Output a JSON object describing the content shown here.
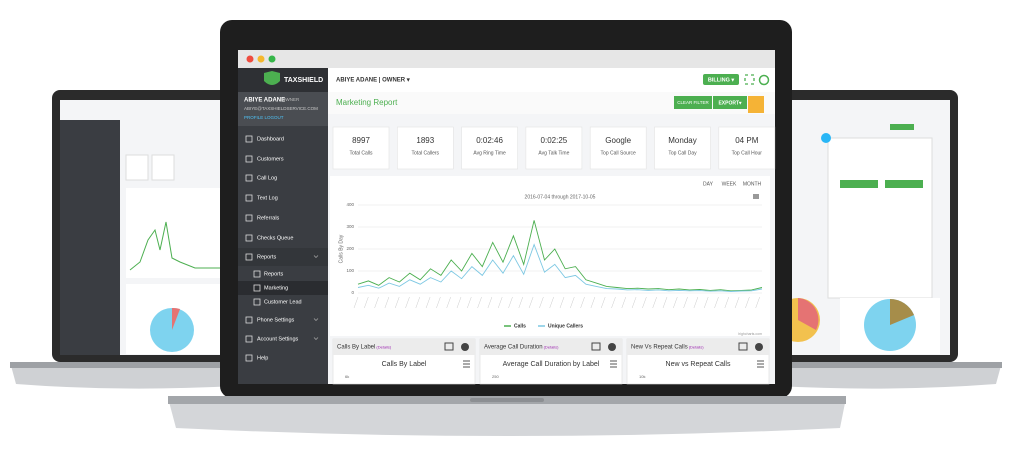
{
  "sidebar": {
    "brand": "TAXSHIELD",
    "user_name": "ABIYE ADANE",
    "user_role": "OWNER",
    "email": "ABIYE@TAXSHIELDSERVICE.COM",
    "profile_link": "PROFILE LOGOUT",
    "menu": [
      "Dashboard",
      "Customers",
      "Call Log",
      "Text Log",
      "Referrals",
      "Checks Queue",
      "Reports",
      "Reports",
      "Marketing",
      "Customer Lead",
      "Phone Settings",
      "Account Settings",
      "Help"
    ]
  },
  "header": {
    "user": "ABIYE ADANE | OWNER ▾",
    "billing": "BILLING ▾"
  },
  "page": {
    "title": "Marketing Report",
    "clear_filter": "CLEAR FILTER",
    "export": "EXPORT▾"
  },
  "stats": [
    {
      "value": "8997",
      "label": "Total Calls"
    },
    {
      "value": "1893",
      "label": "Total Callers"
    },
    {
      "value": "0:02:46",
      "label": "Avg Ring Time"
    },
    {
      "value": "0:02:25",
      "label": "Avg Talk Time"
    },
    {
      "value": "Google",
      "label": "Top Call Source"
    },
    {
      "value": "Monday",
      "label": "Top Call Day"
    },
    {
      "value": "04 PM",
      "label": "Top Call Hour"
    }
  ],
  "range_buttons": [
    "DAY",
    "WEEK",
    "MONTH"
  ],
  "chart_data": {
    "type": "line",
    "subtitle": "2016-07-04 through 2017-10-05",
    "y_label": "Calls By Day",
    "ylim": [
      0,
      400
    ],
    "yticks": [
      0,
      100,
      200,
      300,
      400
    ],
    "credit": "highcharts.com",
    "series": [
      {
        "name": "Calls",
        "color": "#4caf50",
        "values": [
          40,
          55,
          35,
          70,
          50,
          90,
          60,
          110,
          80,
          150,
          100,
          180,
          120,
          230,
          140,
          260,
          130,
          330,
          150,
          200,
          110,
          120,
          60,
          45,
          30,
          25,
          20,
          22,
          18,
          20,
          15,
          18,
          14,
          16,
          12,
          15,
          10,
          12,
          14,
          25
        ]
      },
      {
        "name": "Unique Callers",
        "color": "#7ec8e3",
        "values": [
          25,
          35,
          22,
          45,
          30,
          60,
          40,
          70,
          50,
          100,
          65,
          120,
          80,
          150,
          90,
          170,
          85,
          220,
          95,
          130,
          70,
          80,
          40,
          30,
          20,
          18,
          14,
          15,
          12,
          14,
          10,
          12,
          10,
          11,
          8,
          10,
          7,
          9,
          10,
          18
        ]
      }
    ]
  },
  "panels": [
    {
      "title": "Calls By Label",
      "details": "(Details)",
      "chart_title": "Calls By Label",
      "axis_label": "6k"
    },
    {
      "title": "Average Call Duration",
      "details": "(Details)",
      "chart_title": "Average Call Duration by Label",
      "axis_label": "250"
    },
    {
      "title": "New Vs Repeat Calls",
      "details": "(Details)",
      "chart_title": "New vs Repeat Calls",
      "axis_label": "10k"
    }
  ]
}
